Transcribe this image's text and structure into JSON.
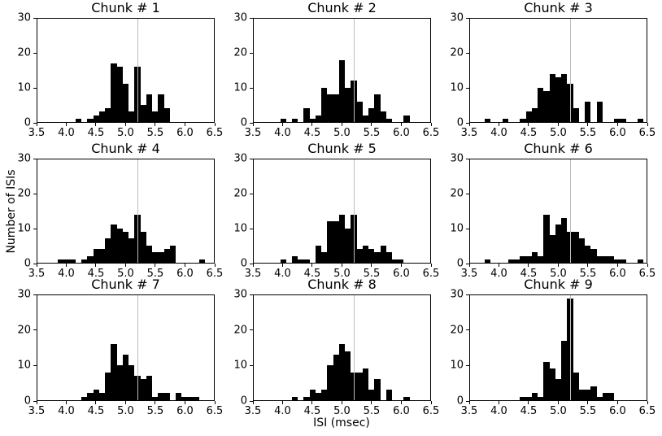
{
  "figure": {
    "xlabel": "ISI (msec)",
    "ylabel": "Number of ISIs",
    "colors": {
      "bar": "#000000",
      "mean_line": "#bdbdbd",
      "spine": "#000000",
      "background": "#ffffff"
    }
  },
  "chart_data": [
    {
      "type": "bar",
      "title": "Chunk # 1",
      "xlim": [
        3.5,
        6.5
      ],
      "ylim": [
        0,
        30
      ],
      "xticks": [
        3.5,
        4.0,
        4.5,
        5.0,
        5.5,
        6.0,
        6.5
      ],
      "yticks": [
        0,
        10,
        20,
        30
      ],
      "vline_x": 5.2,
      "bin_width": 0.1,
      "bin_centers": [
        4.2,
        4.4,
        4.5,
        4.6,
        4.7,
        4.8,
        4.9,
        5.0,
        5.1,
        5.2,
        5.3,
        5.4,
        5.5,
        5.6,
        5.7
      ],
      "counts": [
        1,
        1,
        2,
        3,
        4,
        17,
        16,
        11,
        3,
        16,
        5,
        8,
        3,
        8,
        4
      ]
    },
    {
      "type": "bar",
      "title": "Chunk # 2",
      "xlim": [
        3.5,
        6.5
      ],
      "ylim": [
        0,
        30
      ],
      "xticks": [
        3.5,
        4.0,
        4.5,
        5.0,
        5.5,
        6.0,
        6.5
      ],
      "yticks": [
        0,
        10,
        20,
        30
      ],
      "vline_x": 5.2,
      "bin_width": 0.1,
      "bin_centers": [
        4.0,
        4.2,
        4.4,
        4.5,
        4.6,
        4.7,
        4.8,
        4.9,
        5.0,
        5.1,
        5.2,
        5.3,
        5.4,
        5.5,
        5.6,
        5.7,
        5.8,
        6.1
      ],
      "counts": [
        1,
        1,
        4,
        1,
        2,
        10,
        8,
        8,
        18,
        10,
        12,
        6,
        2,
        4,
        8,
        3,
        1,
        2
      ]
    },
    {
      "type": "bar",
      "title": "Chunk # 3",
      "xlim": [
        3.5,
        6.5
      ],
      "ylim": [
        0,
        30
      ],
      "xticks": [
        3.5,
        4.0,
        4.5,
        5.0,
        5.5,
        6.0,
        6.5
      ],
      "yticks": [
        0,
        10,
        20,
        30
      ],
      "vline_x": 5.2,
      "bin_width": 0.1,
      "bin_centers": [
        3.8,
        4.1,
        4.4,
        4.5,
        4.6,
        4.7,
        4.8,
        4.9,
        5.0,
        5.1,
        5.2,
        5.3,
        5.5,
        5.7,
        6.0,
        6.1,
        6.4
      ],
      "counts": [
        1,
        1,
        1,
        3,
        4,
        10,
        9,
        14,
        13,
        14,
        11,
        4,
        6,
        6,
        1,
        1,
        1
      ]
    },
    {
      "type": "bar",
      "title": "Chunk # 4",
      "xlim": [
        3.5,
        6.5
      ],
      "ylim": [
        0,
        30
      ],
      "xticks": [
        3.5,
        4.0,
        4.5,
        5.0,
        5.5,
        6.0,
        6.5
      ],
      "yticks": [
        0,
        10,
        20,
        30
      ],
      "vline_x": 5.2,
      "bin_width": 0.1,
      "bin_centers": [
        3.9,
        4.0,
        4.1,
        4.3,
        4.4,
        4.5,
        4.6,
        4.7,
        4.8,
        4.9,
        5.0,
        5.1,
        5.2,
        5.3,
        5.4,
        5.5,
        5.6,
        5.7,
        5.8,
        6.3
      ],
      "counts": [
        1,
        1,
        1,
        1,
        2,
        4,
        4,
        7,
        11,
        10,
        9,
        7,
        14,
        9,
        5,
        3,
        3,
        4,
        5,
        1
      ]
    },
    {
      "type": "bar",
      "title": "Chunk # 5",
      "xlim": [
        3.5,
        6.5
      ],
      "ylim": [
        0,
        30
      ],
      "xticks": [
        3.5,
        4.0,
        4.5,
        5.0,
        5.5,
        6.0,
        6.5
      ],
      "yticks": [
        0,
        10,
        20,
        30
      ],
      "vline_x": 5.2,
      "bin_width": 0.1,
      "bin_centers": [
        4.0,
        4.2,
        4.3,
        4.4,
        4.6,
        4.7,
        4.8,
        4.9,
        5.0,
        5.1,
        5.2,
        5.3,
        5.4,
        5.5,
        5.6,
        5.7,
        5.8,
        5.9,
        6.0
      ],
      "counts": [
        1,
        2,
        1,
        1,
        5,
        3,
        12,
        12,
        14,
        10,
        14,
        4,
        5,
        4,
        3,
        5,
        3,
        1,
        1
      ]
    },
    {
      "type": "bar",
      "title": "Chunk # 6",
      "xlim": [
        3.5,
        6.5
      ],
      "ylim": [
        0,
        30
      ],
      "xticks": [
        3.5,
        4.0,
        4.5,
        5.0,
        5.5,
        6.0,
        6.5
      ],
      "yticks": [
        0,
        10,
        20,
        30
      ],
      "vline_x": 5.2,
      "bin_width": 0.1,
      "bin_centers": [
        3.8,
        4.2,
        4.3,
        4.4,
        4.5,
        4.6,
        4.7,
        4.8,
        4.9,
        5.0,
        5.1,
        5.2,
        5.3,
        5.4,
        5.5,
        5.6,
        5.7,
        5.8,
        5.9,
        6.0,
        6.1,
        6.4
      ],
      "counts": [
        1,
        1,
        1,
        2,
        2,
        3,
        2,
        14,
        8,
        11,
        13,
        9,
        9,
        7,
        5,
        4,
        2,
        2,
        2,
        1,
        1,
        1
      ]
    },
    {
      "type": "bar",
      "title": "Chunk # 7",
      "xlim": [
        3.5,
        6.5
      ],
      "ylim": [
        0,
        30
      ],
      "xticks": [
        3.5,
        4.0,
        4.5,
        5.0,
        5.5,
        6.0,
        6.5
      ],
      "yticks": [
        0,
        10,
        20,
        30
      ],
      "vline_x": 5.2,
      "bin_width": 0.1,
      "bin_centers": [
        4.3,
        4.4,
        4.5,
        4.6,
        4.7,
        4.8,
        4.9,
        5.0,
        5.1,
        5.2,
        5.3,
        5.4,
        5.5,
        5.6,
        5.7,
        5.9,
        6.0,
        6.1,
        6.2
      ],
      "counts": [
        1,
        2,
        3,
        2,
        8,
        16,
        10,
        13,
        10,
        7,
        6,
        7,
        1,
        2,
        2,
        2,
        1,
        1,
        1
      ]
    },
    {
      "type": "bar",
      "title": "Chunk # 8",
      "xlim": [
        3.5,
        6.5
      ],
      "ylim": [
        0,
        30
      ],
      "xticks": [
        3.5,
        4.0,
        4.5,
        5.0,
        5.5,
        6.0,
        6.5
      ],
      "yticks": [
        0,
        10,
        20,
        30
      ],
      "vline_x": 5.2,
      "bin_width": 0.1,
      "bin_centers": [
        4.2,
        4.4,
        4.5,
        4.6,
        4.7,
        4.8,
        4.9,
        5.0,
        5.1,
        5.2,
        5.3,
        5.4,
        5.5,
        5.6,
        5.8,
        6.1
      ],
      "counts": [
        1,
        1,
        3,
        2,
        3,
        10,
        13,
        16,
        14,
        8,
        8,
        9,
        3,
        6,
        3,
        1
      ]
    },
    {
      "type": "bar",
      "title": "Chunk # 9",
      "xlim": [
        3.5,
        6.5
      ],
      "ylim": [
        0,
        30
      ],
      "xticks": [
        3.5,
        4.0,
        4.5,
        5.0,
        5.5,
        6.0,
        6.5
      ],
      "yticks": [
        0,
        10,
        20,
        30
      ],
      "vline_x": 5.2,
      "bin_width": 0.1,
      "bin_centers": [
        4.4,
        4.5,
        4.6,
        4.7,
        4.8,
        4.9,
        5.0,
        5.1,
        5.2,
        5.3,
        5.4,
        5.5,
        5.6,
        5.7,
        5.8,
        5.9
      ],
      "counts": [
        1,
        1,
        2,
        1,
        11,
        9,
        6,
        17,
        29,
        8,
        3,
        3,
        4,
        1,
        2,
        2
      ]
    }
  ]
}
